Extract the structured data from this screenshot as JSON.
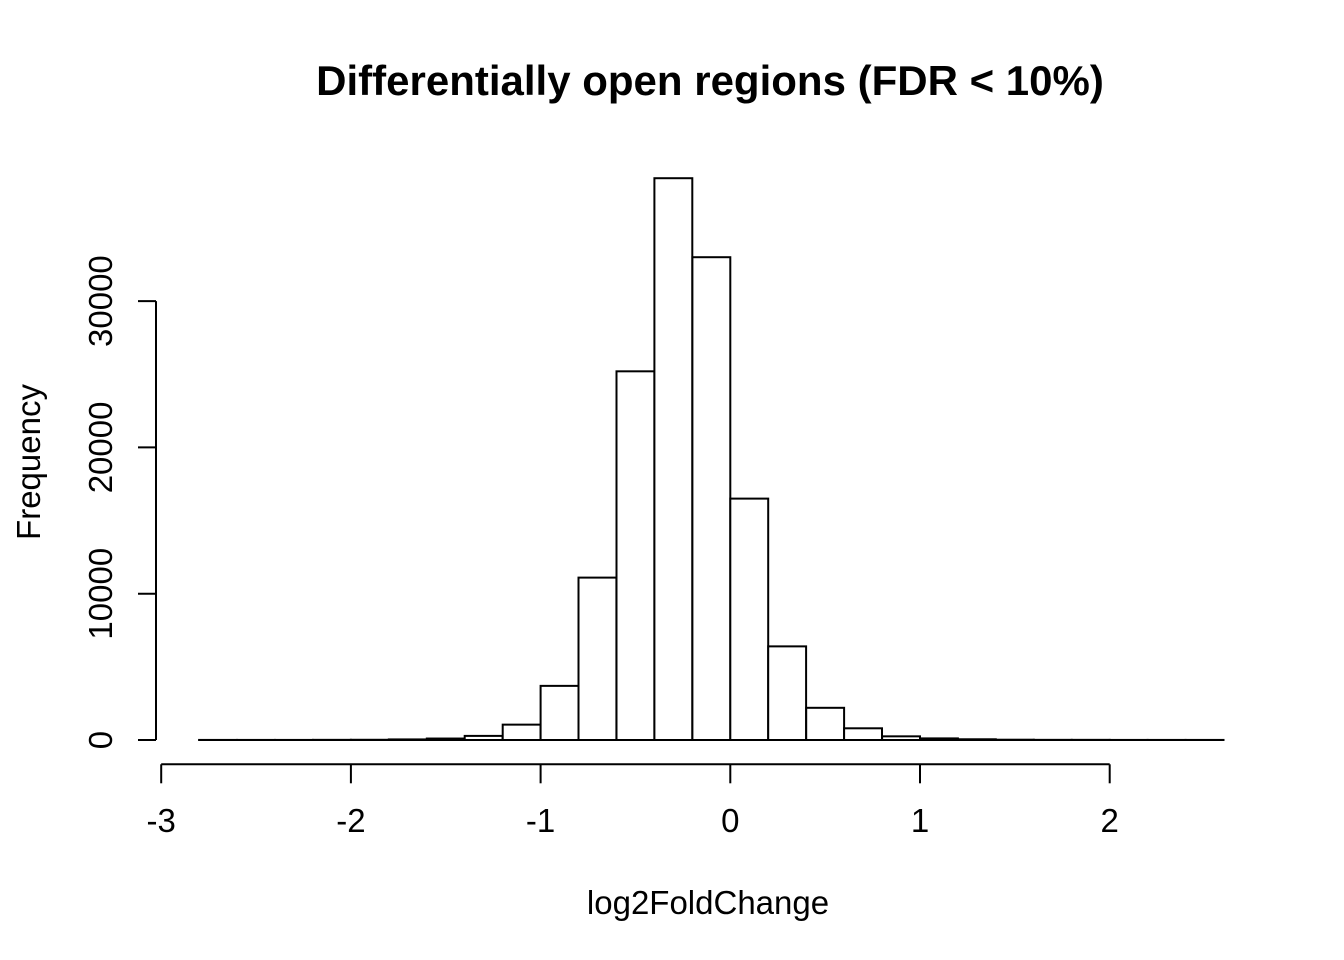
{
  "chart_data": {
    "type": "histogram",
    "title": "Differentially open regions (FDR < 10%)",
    "xlabel": "log2FoldChange",
    "ylabel": "Frequency",
    "bin_start": -2.8,
    "bin_width": 0.2,
    "bin_edges": [
      -2.8,
      -2.6,
      -2.4,
      -2.2,
      -2.0,
      -1.8,
      -1.6,
      -1.4,
      -1.2,
      -1.0,
      -0.8,
      -0.6,
      -0.4,
      -0.2,
      0.0,
      0.2,
      0.4,
      0.6,
      0.8,
      1.0,
      1.2,
      1.4,
      1.6,
      1.8,
      2.0,
      2.2,
      2.4,
      2.6
    ],
    "counts": [
      5,
      5,
      5,
      10,
      15,
      40,
      100,
      280,
      1050,
      3700,
      11100,
      25200,
      38400,
      33000,
      16500,
      6400,
      2200,
      800,
      250,
      110,
      50,
      20,
      10,
      10,
      5,
      5,
      5
    ],
    "x_ticks": [
      -3,
      -2,
      -1,
      0,
      1,
      2
    ],
    "x_tick_labels": [
      "-3",
      "-2",
      "-1",
      "0",
      "1",
      "2"
    ],
    "y_ticks": [
      0,
      10000,
      20000,
      30000
    ],
    "y_tick_labels": [
      "0",
      "10000",
      "20000",
      "30000"
    ],
    "x_axis_line_range": [
      -3,
      2
    ],
    "y_axis_line_range": [
      0,
      30000
    ],
    "xlim": [
      -3,
      2.6
    ],
    "ylim": [
      0,
      38400
    ],
    "grid": false,
    "legend": false,
    "colors": {
      "background": "#ffffff",
      "bar_fill": "#ffffff",
      "bar_stroke": "#000000",
      "axis": "#000000",
      "text": "#000000"
    }
  }
}
